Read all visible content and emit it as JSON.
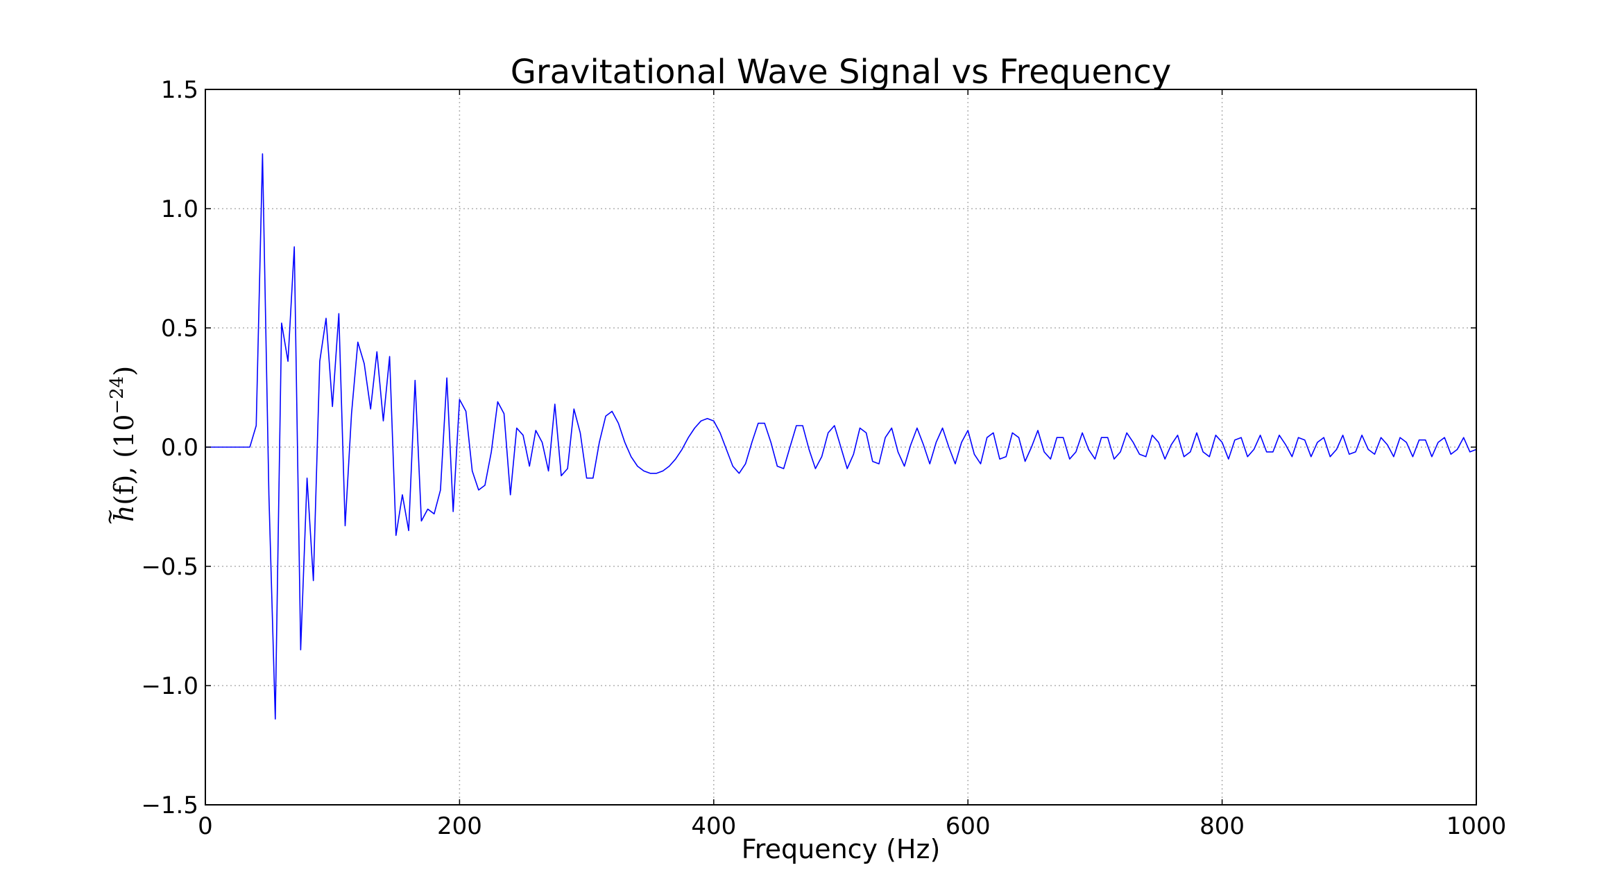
{
  "chart_data": {
    "type": "line",
    "title": "Gravitational Wave Signal vs Frequency",
    "xlabel": "Frequency (Hz)",
    "ylabel": {
      "h": "h",
      "tilde": "~",
      "args": "(f), (10",
      "exponent": "−24",
      "close": ")"
    },
    "xlim": [
      0,
      1000
    ],
    "ylim": [
      -1.5,
      1.5
    ],
    "xticks": [
      0,
      200,
      400,
      600,
      800,
      1000
    ],
    "xtick_labels": [
      "0",
      "200",
      "400",
      "600",
      "800",
      "1000"
    ],
    "yticks": [
      -1.5,
      -1.0,
      -0.5,
      0.0,
      0.5,
      1.0,
      1.5
    ],
    "ytick_labels": [
      "−1.5",
      "−1.0",
      "−0.5",
      "0.0",
      "0.5",
      "1.0",
      "1.5"
    ],
    "grid": true,
    "legend": "none",
    "series": [
      {
        "color": "#0000ff",
        "x": [
          0,
          35,
          40,
          45,
          50,
          55,
          60,
          65,
          70,
          75,
          80,
          85,
          90,
          95,
          100,
          105,
          110,
          115,
          120,
          125,
          130,
          135,
          140,
          145,
          150,
          155,
          160,
          165,
          170,
          175,
          180,
          185,
          190,
          195,
          200,
          205,
          210,
          215,
          220,
          225,
          230,
          235,
          240,
          245,
          250,
          255,
          260,
          265,
          270,
          275,
          280,
          285,
          290,
          295,
          300,
          305,
          310,
          315,
          320,
          325,
          330,
          335,
          340,
          345,
          350,
          355,
          360,
          365,
          370,
          375,
          380,
          385,
          390,
          395,
          400,
          405,
          410,
          415,
          420,
          425,
          430,
          435,
          440,
          445,
          450,
          455,
          460,
          465,
          470,
          475,
          480,
          485,
          490,
          495,
          500,
          505,
          510,
          515,
          520,
          525,
          530,
          535,
          540,
          545,
          550,
          555,
          560,
          565,
          570,
          575,
          580,
          585,
          590,
          595,
          600,
          605,
          610,
          615,
          620,
          625,
          630,
          635,
          640,
          645,
          650,
          655,
          660,
          665,
          670,
          675,
          680,
          685,
          690,
          695,
          700,
          705,
          710,
          715,
          720,
          725,
          730,
          735,
          740,
          745,
          750,
          755,
          760,
          765,
          770,
          775,
          780,
          785,
          790,
          795,
          800,
          805,
          810,
          815,
          820,
          825,
          830,
          835,
          840,
          845,
          850,
          855,
          860,
          865,
          870,
          875,
          880,
          885,
          890,
          895,
          900,
          905,
          910,
          915,
          920,
          925,
          930,
          935,
          940,
          945,
          950,
          955,
          960,
          965,
          970,
          975,
          980,
          985,
          990,
          995,
          1000
        ],
        "y": [
          0.0,
          0.0,
          0.09,
          1.23,
          -0.2,
          -1.14,
          0.52,
          0.36,
          0.84,
          -0.85,
          -0.13,
          -0.56,
          0.36,
          0.54,
          0.17,
          0.56,
          -0.33,
          0.14,
          0.44,
          0.35,
          0.16,
          0.4,
          0.11,
          0.38,
          -0.37,
          -0.2,
          -0.35,
          0.28,
          -0.31,
          -0.26,
          -0.28,
          -0.18,
          0.29,
          -0.27,
          0.2,
          0.15,
          -0.1,
          -0.18,
          -0.16,
          -0.02,
          0.19,
          0.14,
          -0.2,
          0.08,
          0.05,
          -0.08,
          0.07,
          0.02,
          -0.1,
          0.18,
          -0.12,
          -0.09,
          0.16,
          0.06,
          -0.13,
          -0.13,
          0.02,
          0.13,
          0.15,
          0.1,
          0.02,
          -0.04,
          -0.08,
          -0.1,
          -0.11,
          -0.11,
          -0.1,
          -0.08,
          -0.05,
          -0.01,
          0.04,
          0.08,
          0.11,
          0.12,
          0.11,
          0.06,
          -0.01,
          -0.08,
          -0.11,
          -0.07,
          0.02,
          0.1,
          0.1,
          0.02,
          -0.08,
          -0.09,
          0.0,
          0.09,
          0.09,
          -0.01,
          -0.09,
          -0.04,
          0.06,
          0.09,
          0.0,
          -0.09,
          -0.03,
          0.08,
          0.06,
          -0.06,
          -0.07,
          0.04,
          0.08,
          -0.02,
          -0.08,
          0.01,
          0.08,
          0.01,
          -0.07,
          0.02,
          0.08,
          0.0,
          -0.07,
          0.02,
          0.07,
          -0.03,
          -0.07,
          0.04,
          0.06,
          -0.05,
          -0.04,
          0.06,
          0.04,
          -0.06,
          0.0,
          0.07,
          -0.02,
          -0.05,
          0.04,
          0.04,
          -0.05,
          -0.02,
          0.06,
          -0.01,
          -0.05,
          0.04,
          0.04,
          -0.05,
          -0.02,
          0.06,
          0.02,
          -0.03,
          -0.04,
          0.05,
          0.02,
          -0.05,
          0.01,
          0.05,
          -0.04,
          -0.02,
          0.06,
          -0.02,
          -0.04,
          0.05,
          0.02,
          -0.05,
          0.03,
          0.04,
          -0.04,
          -0.01,
          0.05,
          -0.02,
          -0.02,
          0.05,
          0.01,
          -0.04,
          0.04,
          0.03,
          -0.04,
          0.02,
          0.04,
          -0.04,
          -0.01,
          0.05,
          -0.03,
          -0.02,
          0.05,
          -0.01,
          -0.03,
          0.04,
          0.01,
          -0.04,
          0.04,
          0.02,
          -0.04,
          0.03,
          0.03,
          -0.04,
          0.02,
          0.04,
          -0.03,
          -0.01,
          0.04,
          -0.02,
          -0.01
        ]
      }
    ]
  }
}
